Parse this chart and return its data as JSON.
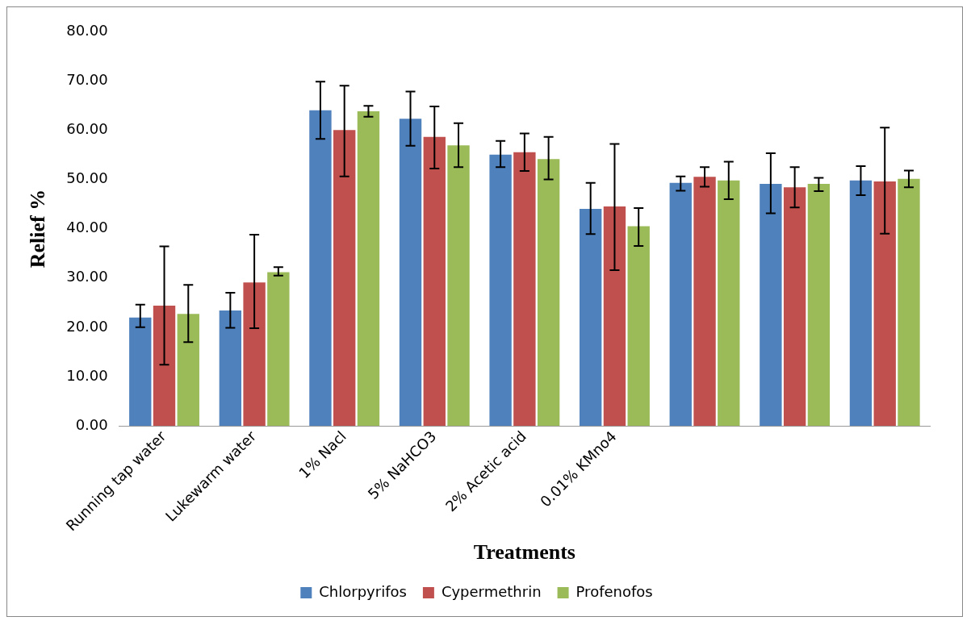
{
  "chart_data": {
    "type": "bar",
    "xlabel": "Treatments",
    "ylabel": "Relief %",
    "categories": [
      "Running tap water",
      "Lukewarm water",
      "1% Nacl",
      "5% NaHCO3",
      "2% Acetic acid",
      "0.01% KMno4",
      null,
      null,
      null
    ],
    "series": [
      {
        "name": "Chlorpyrifos",
        "color": "#4f81bd",
        "values": [
          22.0,
          23.4,
          64.0,
          62.3,
          55.0,
          44.0,
          49.3,
          49.1,
          49.8
        ],
        "errors": [
          [
            20.0,
            24.6
          ],
          [
            19.9,
            27.0
          ],
          [
            58.2,
            69.8
          ],
          [
            56.8,
            67.8
          ],
          [
            52.5,
            57.8
          ],
          [
            38.9,
            49.3
          ],
          [
            47.7,
            50.6
          ],
          [
            43.1,
            55.3
          ],
          [
            46.8,
            52.7
          ]
        ]
      },
      {
        "name": "Cypermethrin",
        "color": "#c0504d",
        "values": [
          24.4,
          29.1,
          60.0,
          58.6,
          55.5,
          44.5,
          50.5,
          48.4,
          49.6
        ],
        "errors": [
          [
            12.4,
            36.4
          ],
          [
            19.8,
            38.8
          ],
          [
            50.6,
            69.0
          ],
          [
            52.2,
            64.8
          ],
          [
            51.7,
            59.3
          ],
          [
            31.6,
            57.2
          ],
          [
            48.5,
            52.5
          ],
          [
            44.3,
            52.5
          ],
          [
            39.0,
            60.5
          ]
        ]
      },
      {
        "name": "Profenofos",
        "color": "#9bbb59",
        "values": [
          22.7,
          31.2,
          63.8,
          56.9,
          54.1,
          40.5,
          49.8,
          49.1,
          50.1
        ],
        "errors": [
          [
            17.0,
            28.6
          ],
          [
            30.5,
            32.2
          ],
          [
            62.7,
            64.9
          ],
          [
            52.5,
            61.4
          ],
          [
            50.0,
            58.6
          ],
          [
            36.5,
            44.2
          ],
          [
            46.0,
            53.6
          ],
          [
            47.6,
            50.3
          ],
          [
            48.4,
            51.8
          ]
        ]
      }
    ],
    "ylim": [
      0,
      80
    ],
    "yticks": [
      {
        "value": 0,
        "label": "0.00"
      },
      {
        "value": 10,
        "label": "10.00"
      },
      {
        "value": 20,
        "label": "20.00"
      },
      {
        "value": 30,
        "label": "30.00"
      },
      {
        "value": 40,
        "label": "40.00"
      },
      {
        "value": 50,
        "label": "50.00"
      },
      {
        "value": 60,
        "label": "60.00"
      },
      {
        "value": 70,
        "label": "70.00"
      },
      {
        "value": 80,
        "label": "80.00"
      }
    ],
    "grid": false,
    "legend": "bottom"
  }
}
